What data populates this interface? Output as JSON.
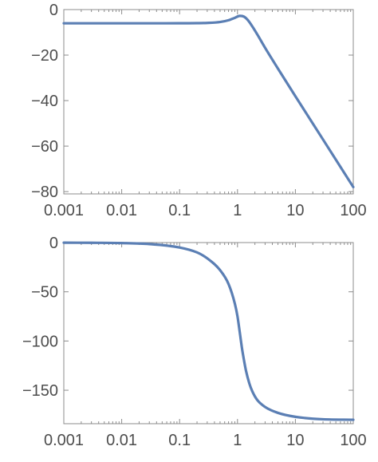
{
  "chart_data": [
    {
      "type": "line",
      "title": "",
      "xlabel": "",
      "ylabel": "",
      "x_scale": "log",
      "xlim": [
        0.001,
        100
      ],
      "ylim": [
        -81,
        0
      ],
      "grid": false,
      "line_color": "#5b7fb4",
      "x_ticks": [
        {
          "value": 0.001,
          "label": "0.001"
        },
        {
          "value": 0.01,
          "label": "0.01"
        },
        {
          "value": 0.1,
          "label": "0.1"
        },
        {
          "value": 1,
          "label": "1"
        },
        {
          "value": 10,
          "label": "10"
        },
        {
          "value": 100,
          "label": "100"
        }
      ],
      "y_ticks": [
        {
          "value": 0,
          "label": "0"
        },
        {
          "value": -20,
          "label": "−20"
        },
        {
          "value": -40,
          "label": "−40"
        },
        {
          "value": -60,
          "label": "−60"
        },
        {
          "value": -80,
          "label": "−80"
        }
      ],
      "series": [
        {
          "x": [
            0.001,
            0.003,
            0.01,
            0.03,
            0.1,
            0.2,
            0.3,
            0.5,
            0.7,
            0.9,
            1.1,
            1.3,
            1.5,
            1.8,
            2.2,
            3,
            5,
            10,
            30,
            100
          ],
          "y": [
            -6.02,
            -6.02,
            -6.02,
            -6.02,
            -6.01,
            -5.96,
            -5.87,
            -5.46,
            -4.68,
            -3.62,
            -2.77,
            -3.13,
            -4.55,
            -7.36,
            -10.95,
            -16.81,
            -25.94,
            -38.08,
            -57.09,
            -78.0
          ]
        }
      ]
    },
    {
      "type": "line",
      "title": "",
      "xlabel": "",
      "ylabel": "",
      "x_scale": "log",
      "xlim": [
        0.001,
        100
      ],
      "ylim": [
        -184,
        0
      ],
      "grid": false,
      "line_color": "#5b7fb4",
      "x_ticks": [
        {
          "value": 0.001,
          "label": "0.001"
        },
        {
          "value": 0.01,
          "label": "0.01"
        },
        {
          "value": 0.1,
          "label": "0.1"
        },
        {
          "value": 1,
          "label": "1"
        },
        {
          "value": 10,
          "label": "10"
        },
        {
          "value": 100,
          "label": "100"
        }
      ],
      "y_ticks": [
        {
          "value": 0,
          "label": "0"
        },
        {
          "value": -50,
          "label": "−50"
        },
        {
          "value": -100,
          "label": "−100"
        },
        {
          "value": -150,
          "label": "−150"
        }
      ],
      "series": [
        {
          "x": [
            0.001,
            0.003,
            0.01,
            0.03,
            0.1,
            0.2,
            0.3,
            0.5,
            0.7,
            0.9,
            1.0,
            1.1,
            1.2,
            1.3,
            1.4,
            1.6,
            1.8,
            2.2,
            3,
            5,
            10,
            30,
            100
          ],
          "y": [
            -0.1,
            -0.2,
            -0.5,
            -1.5,
            -5,
            -10,
            -16,
            -28,
            -42,
            -62,
            -75,
            -92,
            -108,
            -120,
            -130,
            -143,
            -151,
            -160,
            -167,
            -173,
            -177,
            -179.5,
            -180
          ]
        }
      ]
    }
  ]
}
